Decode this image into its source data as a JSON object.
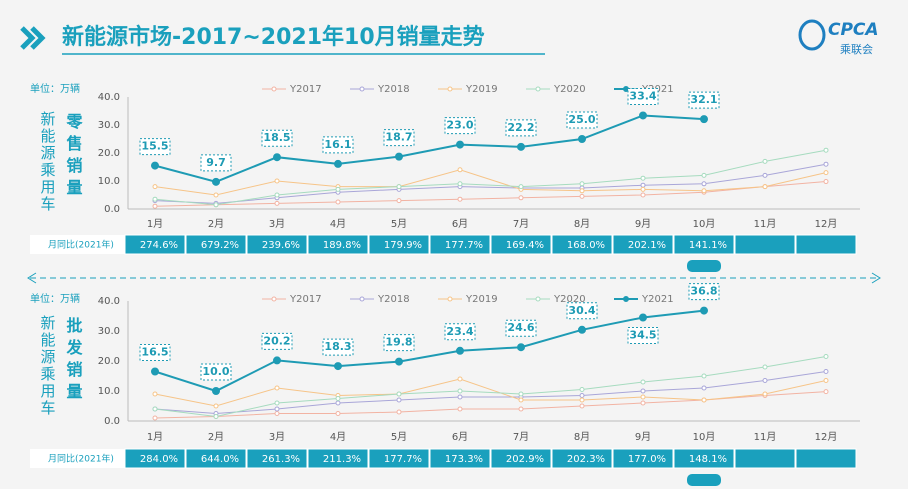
{
  "header": {
    "title": "新能源市场-2017~2021年10月销量走势",
    "logo": "CPCA",
    "logo_sub": "乘联会"
  },
  "chart_data": [
    {
      "type": "line",
      "unit": "单位：万辆",
      "side_label": "新能源乘用车",
      "title": "零售销量",
      "categories": [
        "1月",
        "2月",
        "3月",
        "4月",
        "5月",
        "6月",
        "7月",
        "8月",
        "9月",
        "10月",
        "11月",
        "12月"
      ],
      "ylim": [
        0,
        40
      ],
      "yticks": [
        {
          "value": 0,
          "label": "0.0"
        },
        {
          "value": 10,
          "label": "10.0"
        },
        {
          "value": 20,
          "label": "20.0"
        },
        {
          "value": 30,
          "label": "30.0"
        },
        {
          "value": 40,
          "label": "40.0"
        }
      ],
      "series": [
        {
          "name": "Y2017",
          "color": "#f2b3a3",
          "values": [
            1,
            1.5,
            2,
            2.5,
            3,
            3.5,
            4,
            4.5,
            5,
            6,
            8,
            9.8
          ]
        },
        {
          "name": "Y2018",
          "color": "#a9a6d8",
          "values": [
            3,
            2,
            4,
            6,
            7,
            8,
            7.5,
            7.5,
            8.5,
            9,
            12,
            16
          ]
        },
        {
          "name": "Y2019",
          "color": "#f6c488",
          "values": [
            8,
            5,
            10,
            8,
            8,
            14,
            7,
            6.5,
            7,
            6.5,
            8,
            13
          ]
        },
        {
          "name": "Y2020",
          "color": "#a6dbbf",
          "values": [
            3.5,
            1.5,
            5,
            7,
            8,
            9,
            8,
            9,
            11,
            12,
            17,
            21
          ]
        },
        {
          "name": "Y2021",
          "color": "#1e9bb4",
          "values": [
            15.5,
            9.7,
            18.5,
            16.1,
            18.7,
            23,
            22.2,
            25,
            33.4,
            32.1,
            null,
            null
          ],
          "value_labels": [
            "15.5",
            "9.7",
            "18.5",
            "16.1",
            "18.7",
            "23.0",
            "22.2",
            "25.0",
            "33.4",
            "32.1",
            null,
            null
          ]
        }
      ],
      "yoy": {
        "label": "月同比(2021年)",
        "values": [
          "274.6%",
          "679.2%",
          "239.6%",
          "189.8%",
          "179.9%",
          "177.7%",
          "169.4%",
          "168.0%",
          "202.1%",
          "141.1%",
          null,
          null
        ]
      }
    },
    {
      "type": "line",
      "unit": "单位：万辆",
      "side_label": "新能源乘用车",
      "title": "批发销量",
      "categories": [
        "1月",
        "2月",
        "3月",
        "4月",
        "5月",
        "6月",
        "7月",
        "8月",
        "9月",
        "10月",
        "11月",
        "12月"
      ],
      "ylim": [
        0,
        40
      ],
      "yticks": [
        {
          "value": 0,
          "label": "0.0"
        },
        {
          "value": 10,
          "label": "10.0"
        },
        {
          "value": 20,
          "label": "20.0"
        },
        {
          "value": 30,
          "label": "30.0"
        },
        {
          "value": 40,
          "label": "40.0"
        }
      ],
      "series": [
        {
          "name": "Y2017",
          "color": "#f2b3a3",
          "values": [
            1,
            1.5,
            2.5,
            2.5,
            3,
            4,
            4,
            5,
            6,
            7,
            8.5,
            9.8
          ]
        },
        {
          "name": "Y2018",
          "color": "#a9a6d8",
          "values": [
            4,
            2.5,
            4,
            6,
            7,
            8,
            8,
            8.5,
            10,
            11,
            13.5,
            16.5
          ]
        },
        {
          "name": "Y2019",
          "color": "#f6c488",
          "values": [
            9,
            5,
            11,
            8.5,
            9,
            14,
            7,
            7,
            8,
            7,
            9,
            13.5
          ]
        },
        {
          "name": "Y2020",
          "color": "#a6dbbf",
          "values": [
            4,
            1.5,
            6,
            7.5,
            9,
            10,
            9,
            10.5,
            13,
            15,
            18,
            21.5
          ]
        },
        {
          "name": "Y2021",
          "color": "#1e9bb4",
          "values": [
            16.5,
            10,
            20.2,
            18.3,
            19.8,
            23.4,
            24.6,
            30.4,
            34.5,
            36.8,
            null,
            null
          ],
          "value_labels": [
            "16.5",
            "10.0",
            "20.2",
            "18.3",
            "19.8",
            "23.4",
            "24.6",
            "30.4",
            "34.5",
            "36.8",
            null,
            null
          ]
        }
      ],
      "yoy": {
        "label": "月同比(2021年)",
        "values": [
          "284.0%",
          "644.0%",
          "261.3%",
          "211.3%",
          "177.7%",
          "173.3%",
          "202.9%",
          "202.3%",
          "177.0%",
          "148.1%",
          null,
          null
        ]
      }
    }
  ]
}
